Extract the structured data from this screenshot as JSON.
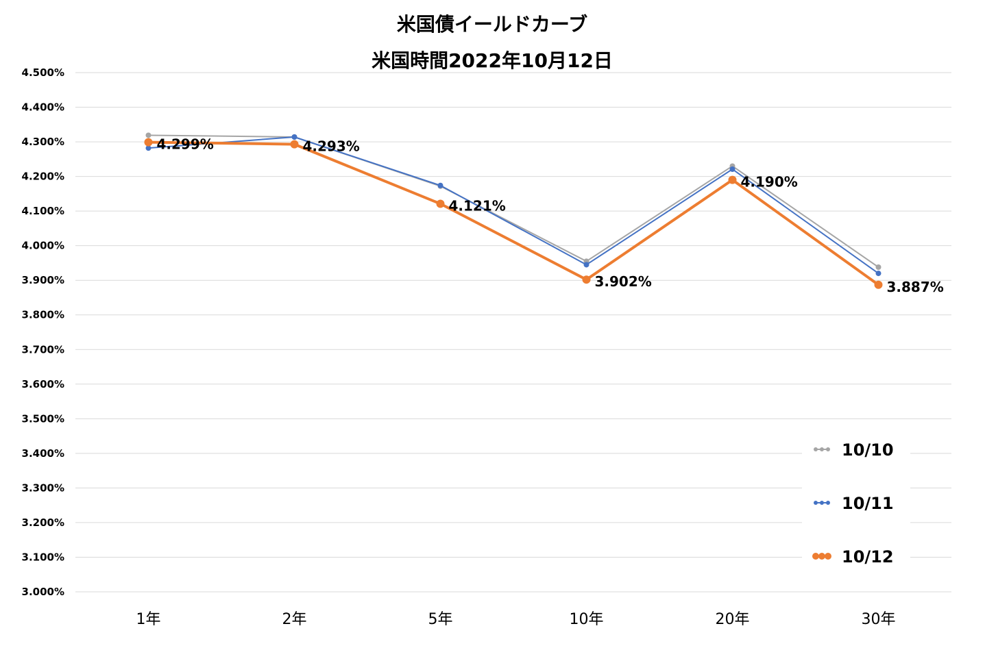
{
  "chart_data": {
    "type": "line",
    "title": "米国債イールドカーブ",
    "subtitle": "米国時間2022年10月12日",
    "xlabel": "",
    "ylabel": "",
    "categories": [
      "1年",
      "2年",
      "5年",
      "10年",
      "20年",
      "30年"
    ],
    "ylim": [
      3.0,
      4.5
    ],
    "yticks": [
      4.5,
      4.4,
      4.3,
      4.2,
      4.1,
      4.0,
      3.9,
      3.8,
      3.7,
      3.6,
      3.5,
      3.4,
      3.3,
      3.2,
      3.1,
      3.0
    ],
    "ytick_labels": [
      "4.500%",
      "4.400%",
      "4.300%",
      "4.200%",
      "4.100%",
      "4.000%",
      "3.900%",
      "3.800%",
      "3.700%",
      "3.600%",
      "3.500%",
      "3.400%",
      "3.300%",
      "3.200%",
      "3.100%",
      "3.000%"
    ],
    "grid": true,
    "legend_position": "bottom-right",
    "series": [
      {
        "name": "10/10",
        "color": "#a5a5a5",
        "values": [
          4.319,
          4.314,
          4.172,
          3.955,
          4.23,
          3.938
        ]
      },
      {
        "name": "10/11",
        "color": "#4472c4",
        "values": [
          4.282,
          4.314,
          4.174,
          3.945,
          4.221,
          3.92
        ]
      },
      {
        "name": "10/12",
        "color": "#ed7d31",
        "values": [
          4.299,
          4.293,
          4.121,
          3.902,
          4.19,
          3.887
        ],
        "data_labels": [
          "4.299%",
          "4.293%",
          "4.121%",
          "3.902%",
          "4.190%",
          "3.887%"
        ]
      }
    ]
  }
}
